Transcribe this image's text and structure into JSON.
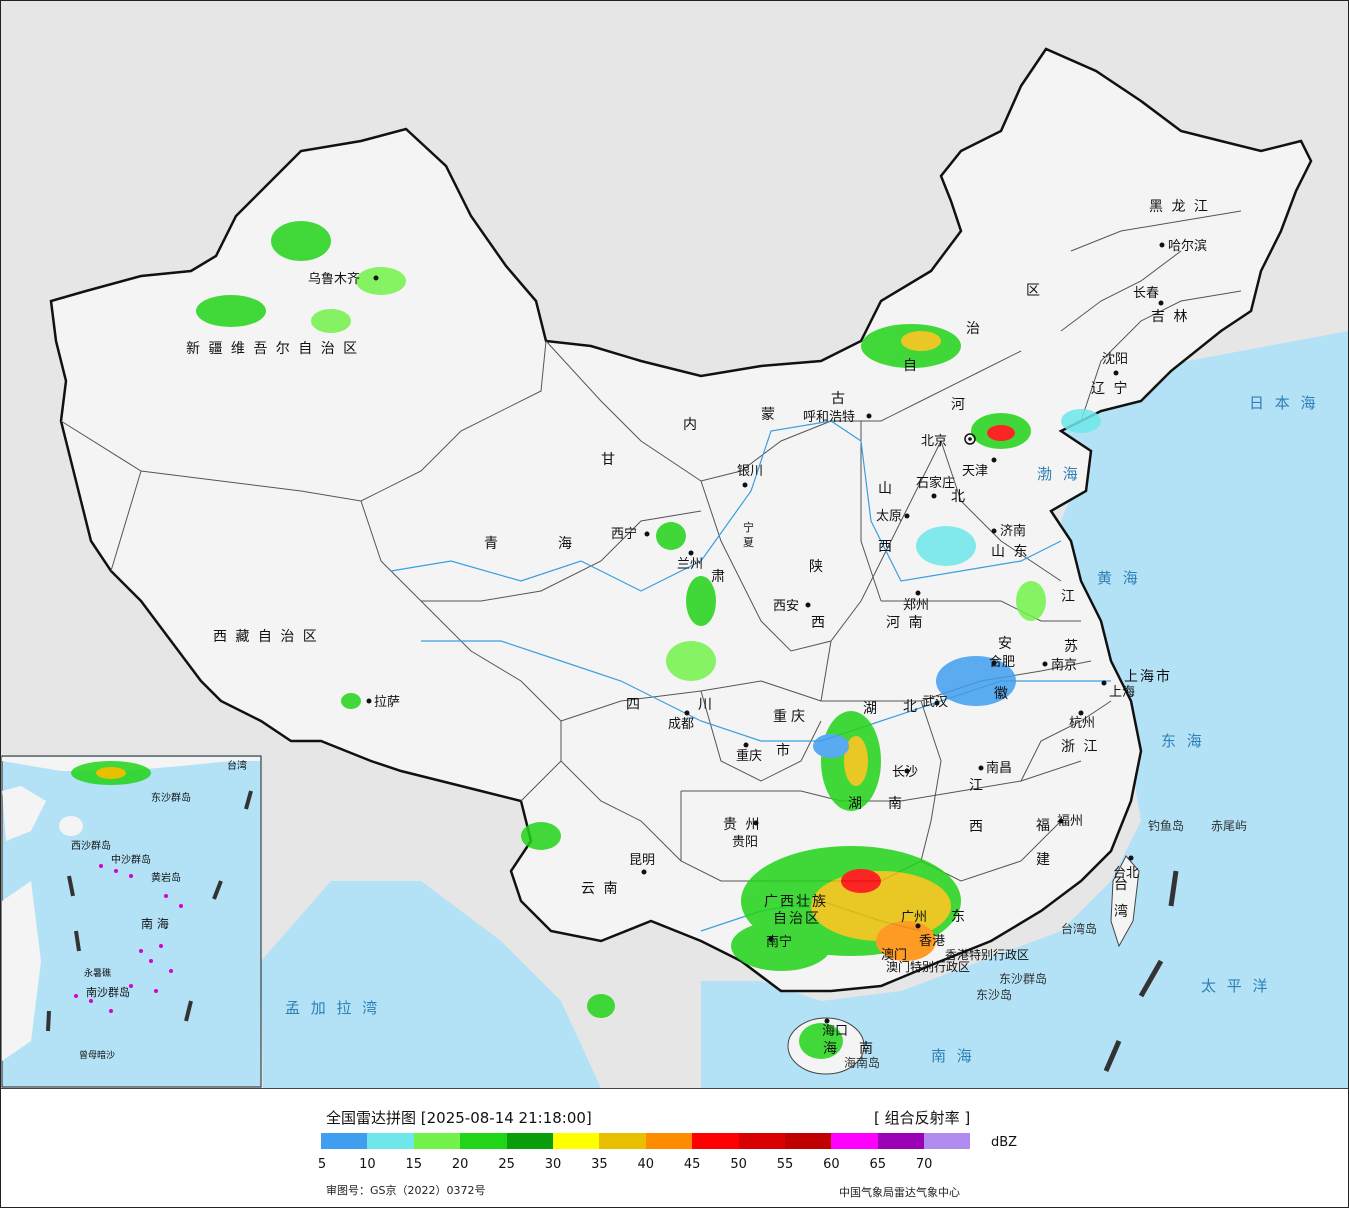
{
  "title": "全国雷达拼图 [2025-08-14 21:18:00]",
  "product": "[ 组合反射率 ]",
  "legend": {
    "unit": "dBZ",
    "colors": [
      "#3f9ef0",
      "#6ee8ea",
      "#72f24a",
      "#20d418",
      "#0a9e0a",
      "#ffff00",
      "#e8c000",
      "#ff8c00",
      "#ff0000",
      "#d80000",
      "#c00000",
      "#ff00ff",
      "#9b00b4",
      "#b08cf0"
    ],
    "ticks": [
      "5",
      "10",
      "15",
      "20",
      "25",
      "30",
      "35",
      "40",
      "45",
      "50",
      "55",
      "60",
      "65",
      "70"
    ]
  },
  "approval_no": "审图号：GS京（2022）0372号",
  "source": "中国气象局雷达气象中心",
  "map": {
    "provinces": {
      "xinjiang": "新 疆 维 吾 尔 自 治 区",
      "xizang": "西 藏 自 治 区",
      "qinghai_1": "青",
      "qinghai_2": "海",
      "gansu_1": "甘",
      "gansu_2": "肃",
      "neimenggu_1": "内",
      "neimenggu_2": "蒙",
      "neimenggu_3": "古",
      "neimenggu_4": "自",
      "neimenggu_5": "治",
      "neimenggu_6": "区",
      "heilongjiang": "黑 龙 江",
      "jilin": "吉 林",
      "liaoning": "辽 宁",
      "hebei_1": "河",
      "hebei_2": "北",
      "shanxi_1": "山",
      "shanxi_2": "西",
      "shandong": "山 东",
      "shaanxi_1": "陕",
      "shaanxi_2": "西",
      "henan": "河 南",
      "jiangsu_1": "江",
      "jiangsu_2": "苏",
      "anhui_1": "安",
      "anhui_2": "徽",
      "shanghai": "上海市",
      "zhejiang": "浙 江",
      "hubei_1": "湖",
      "hubei_2": "北",
      "hunan_1": "湖",
      "hunan_2": "南",
      "jiangxi_1": "江",
      "jiangxi_2": "西",
      "fujian_1": "福",
      "fujian_2": "建",
      "sichuan_1": "四",
      "sichuan_2": "川",
      "chongqing_1": "重",
      "chongqing_2": "庆",
      "chongqing_3": "市",
      "guizhou": "贵 州",
      "yunnan": "云 南",
      "guangxi_1": "广西壮族",
      "guangxi_2": "自治区",
      "guangdong": "东",
      "hainan_1": "海",
      "hainan_2": "南",
      "taiwan_1": "台",
      "taiwan_2": "湾",
      "ningxia_1": "宁",
      "ningxia_2": "夏",
      "hongkong": "香港特别行政区",
      "macao": "澳门特别行政区"
    },
    "cities": {
      "urumqi": "乌鲁木齐",
      "lhasa": "拉萨",
      "xining": "西宁",
      "lanzhou": "兰州",
      "yinchuan": "银川",
      "hohhot": "呼和浩特",
      "beijing": "北京",
      "tianjin": "天津",
      "shijiazhuang": "石家庄",
      "taiyuan": "太原",
      "jinan": "济南",
      "zhengzhou": "郑州",
      "xian": "西安",
      "hefei": "合肥",
      "nanjing": "南京",
      "shanghai": "上海",
      "hangzhou": "杭州",
      "wuhan": "武汉",
      "changsha": "长沙",
      "nanchang": "南昌",
      "fuzhou": "福州",
      "chengdu": "成都",
      "chongqing": "重庆",
      "guiyang": "贵阳",
      "kunming": "昆明",
      "nanning": "南宁",
      "guangzhou": "广州",
      "haikou": "海口",
      "taipei": "台北",
      "shenyang": "沈阳",
      "changchun": "长春",
      "harbin": "哈尔滨",
      "hongkong": "香港",
      "macao": "澳门"
    },
    "seas": {
      "bohai": "渤 海",
      "huanghai": "黄 海",
      "donghai": "东 海",
      "nanhai": "南 海",
      "taipingyang": "太 平 洋",
      "ribenhai": "日 本 海",
      "mengjialawan": "孟 加 拉 湾"
    },
    "islands": {
      "diaoyudao": "钓鱼岛",
      "chiweiyu": "赤尾屿",
      "taiwandao": "台湾岛",
      "dongsha": "东沙群岛",
      "dongshadao": "东沙岛",
      "hainandao": "海南岛"
    },
    "inset": {
      "nanhai": "南 海",
      "dongsha": "东沙群岛",
      "xisha": "西沙群岛",
      "zhongsha": "中沙群岛",
      "nansha": "南沙群岛",
      "huangyan": "黄岩岛",
      "taiwan": "台湾",
      "zengmu": "曾母暗沙",
      "yongshu": "永暑礁"
    }
  }
}
